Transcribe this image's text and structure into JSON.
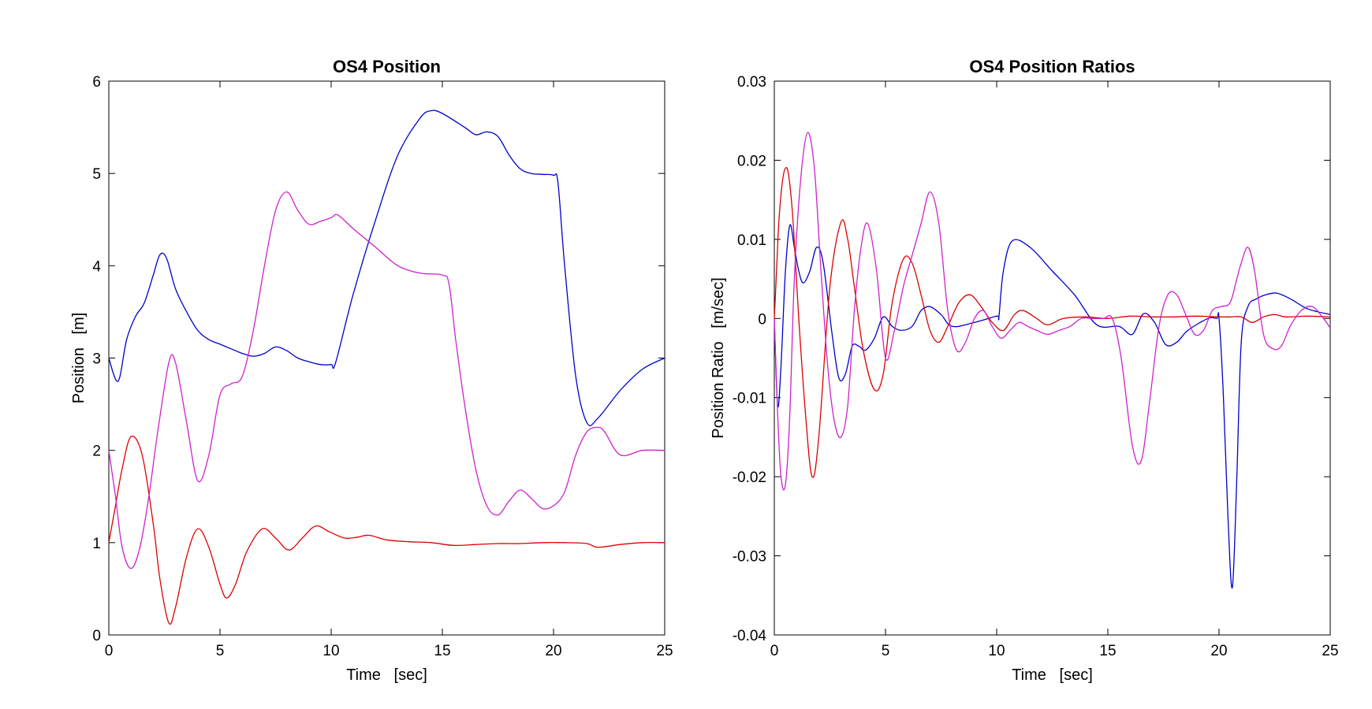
{
  "colors": {
    "blue": "#0000cc",
    "red": "#dd0000",
    "magenta": "#cc22cc"
  },
  "chart_data": [
    {
      "type": "line",
      "title": "OS4 Position",
      "xlabel": "Time   [sec]",
      "ylabel": "Position   [m]",
      "xlim": [
        0,
        25
      ],
      "ylim": [
        0,
        6
      ],
      "xticks": [
        "0",
        "5",
        "10",
        "15",
        "20",
        "25"
      ],
      "yticks": [
        "0",
        "1",
        "2",
        "3",
        "4",
        "5",
        "6"
      ],
      "grid": false,
      "series": [
        {
          "color": "blue",
          "x": [
            0,
            0.3,
            0.5,
            0.8,
            1.2,
            1.6,
            2,
            2.3,
            2.6,
            3,
            3.5,
            4,
            4.5,
            5,
            5.5,
            6,
            6.5,
            7,
            7.5,
            8,
            8.5,
            9,
            9.5,
            10,
            10.2,
            11,
            12,
            13,
            14,
            14.5,
            15,
            16,
            16.5,
            17,
            17.5,
            18,
            18.5,
            19,
            19.5,
            20,
            20.2,
            20.5,
            21,
            21.5,
            22,
            23,
            24,
            25
          ],
          "y": [
            3,
            2.77,
            2.8,
            3.2,
            3.45,
            3.6,
            3.9,
            4.12,
            4.08,
            3.75,
            3.5,
            3.3,
            3.2,
            3.15,
            3.1,
            3.05,
            3.02,
            3.05,
            3.12,
            3.08,
            3,
            2.96,
            2.93,
            2.93,
            2.95,
            3.7,
            4.5,
            5.2,
            5.6,
            5.68,
            5.65,
            5.5,
            5.42,
            5.45,
            5.4,
            5.2,
            5.05,
            5,
            4.99,
            4.98,
            4.9,
            4,
            2.8,
            2.3,
            2.35,
            2.65,
            2.88,
            3
          ]
        },
        {
          "color": "red",
          "x": [
            0,
            0.3,
            0.6,
            1,
            1.5,
            2,
            2.3,
            2.7,
            3,
            3.5,
            4,
            4.5,
            5,
            5.3,
            5.7,
            6.2,
            6.9,
            7.5,
            8.1,
            8.7,
            9.3,
            9.9,
            10.6,
            11.2,
            11.7,
            12.5,
            13.5,
            14.5,
            15.5,
            16.5,
            17.5,
            18.5,
            19.5,
            20.5,
            21.5,
            22,
            23,
            24,
            25
          ],
          "y": [
            1,
            1.4,
            1.8,
            2.15,
            1.95,
            1.2,
            0.6,
            0.13,
            0.3,
            0.85,
            1.15,
            0.95,
            0.55,
            0.4,
            0.55,
            0.9,
            1.15,
            1.05,
            0.92,
            1.05,
            1.18,
            1.12,
            1.05,
            1.06,
            1.08,
            1.03,
            1.01,
            1.0,
            0.97,
            0.98,
            0.99,
            0.99,
            1.0,
            1.0,
            0.99,
            0.95,
            0.98,
            1.0,
            1.0
          ]
        },
        {
          "color": "magenta",
          "x": [
            0,
            0.3,
            0.6,
            1,
            1.4,
            1.8,
            2.2,
            2.7,
            3,
            3.5,
            4,
            4.5,
            5,
            5.5,
            6,
            6.5,
            7,
            7.5,
            8,
            8.5,
            9,
            9.5,
            10,
            10.3,
            11,
            12,
            13,
            14,
            15,
            15.3,
            15.6,
            16,
            16.5,
            17,
            17.5,
            18,
            18.5,
            19,
            19.5,
            20,
            20.5,
            21,
            21.5,
            22,
            22.3,
            23,
            24,
            25
          ],
          "y": [
            2,
            1.5,
            0.95,
            0.72,
            0.95,
            1.5,
            2.2,
            2.95,
            2.95,
            2.3,
            1.67,
            1.95,
            2.6,
            2.72,
            2.8,
            3.3,
            4,
            4.6,
            4.8,
            4.6,
            4.45,
            4.48,
            4.52,
            4.55,
            4.4,
            4.2,
            4.0,
            3.92,
            3.9,
            3.8,
            3.2,
            2.5,
            1.8,
            1.4,
            1.3,
            1.45,
            1.57,
            1.48,
            1.37,
            1.4,
            1.55,
            1.95,
            2.2,
            2.25,
            2.2,
            1.95,
            2.0,
            2.0
          ]
        }
      ]
    },
    {
      "type": "line",
      "title": "OS4 Position Ratios",
      "xlabel": "Time   [sec]",
      "ylabel": "Position Ratio   [m/sec]",
      "xlim": [
        0,
        25
      ],
      "ylim": [
        -0.04,
        0.03
      ],
      "xticks": [
        "0",
        "5",
        "10",
        "15",
        "20",
        "25"
      ],
      "yticks": [
        "-0.04",
        "-0.03",
        "-0.02",
        "-0.01",
        "0",
        "0.01",
        "0.02",
        "0.03"
      ],
      "grid": false,
      "series": [
        {
          "color": "blue",
          "x": [
            0,
            0.15,
            0.3,
            0.5,
            0.7,
            0.9,
            1.1,
            1.3,
            1.6,
            1.9,
            2.2,
            2.6,
            2.9,
            3.2,
            3.5,
            3.8,
            4.1,
            4.5,
            4.9,
            5.3,
            5.7,
            6.2,
            6.6,
            7,
            7.5,
            8,
            9,
            10,
            10.1,
            10.3,
            10.7,
            11.5,
            12.5,
            13.5,
            14.5,
            15.5,
            16.1,
            16.6,
            17.1,
            17.6,
            18.1,
            18.6,
            19.5,
            19.9,
            20,
            20.2,
            20.4,
            20.6,
            20.8,
            21,
            21.3,
            21.7,
            22.1,
            22.6,
            23.2,
            24,
            25
          ],
          "y": [
            0,
            -0.011,
            -0.006,
            0.006,
            0.0118,
            0.009,
            0.006,
            0.0045,
            0.006,
            0.009,
            0.007,
            -0.002,
            -0.0075,
            -0.007,
            -0.0035,
            -0.0035,
            -0.004,
            -0.0025,
            0.0002,
            -0.001,
            -0.0015,
            -0.001,
            0.001,
            0.0015,
            0.0005,
            -0.001,
            -0.0005,
            0.0003,
            0.0002,
            0.006,
            0.0098,
            0.009,
            0.006,
            0.003,
            -0.0008,
            -0.001,
            -0.002,
            0.0006,
            -0.0005,
            -0.0033,
            -0.003,
            -0.0015,
            0,
            0,
            0,
            -0.01,
            -0.025,
            -0.034,
            -0.02,
            -0.003,
            0.0015,
            0.0025,
            0.003,
            0.0032,
            0.0025,
            0.0012,
            0.0005
          ]
        },
        {
          "color": "red",
          "x": [
            0,
            0.1,
            0.2,
            0.35,
            0.5,
            0.65,
            0.85,
            1.1,
            1.4,
            1.7,
            2,
            2.5,
            3,
            3.3,
            3.6,
            4,
            4.5,
            4.9,
            5.3,
            5.8,
            6.2,
            6.6,
            7,
            7.4,
            7.8,
            8.3,
            8.8,
            9.3,
            9.8,
            10.3,
            10.8,
            11.2,
            11.8,
            12.3,
            13,
            14,
            15,
            16,
            17,
            18,
            19,
            20,
            20.5,
            21,
            21.5,
            22,
            22.5,
            23,
            24,
            25
          ],
          "y": [
            0,
            0.006,
            0.012,
            0.017,
            0.019,
            0.018,
            0.012,
            0,
            -0.012,
            -0.02,
            -0.015,
            0.004,
            0.0122,
            0.01,
            0.004,
            -0.004,
            -0.009,
            -0.007,
            0.002,
            0.0075,
            0.007,
            0.003,
            -0.0015,
            -0.003,
            -0.001,
            0.002,
            0.003,
            0.0015,
            -0.0005,
            -0.0015,
            0.0005,
            0.001,
            0,
            -0.0008,
            0,
            0.0002,
            0,
            0.0003,
            0.0002,
            0.0002,
            0.0003,
            0.0002,
            0.0002,
            0.0002,
            -0.0005,
            0.0002,
            0.0005,
            0.0002,
            0.0003,
            0.0002
          ]
        },
        {
          "color": "magenta",
          "x": [
            0,
            0.15,
            0.3,
            0.5,
            0.7,
            0.9,
            1.2,
            1.5,
            1.8,
            2.1,
            2.4,
            2.7,
            3,
            3.3,
            3.6,
            3.9,
            4.2,
            4.6,
            5,
            5.4,
            5.8,
            6.2,
            6.6,
            7,
            7.4,
            7.8,
            8.2,
            8.6,
            9,
            9.4,
            9.8,
            10.2,
            10.6,
            11,
            11.4,
            11.8,
            12.3,
            12.8,
            13.3,
            13.8,
            14.3,
            14.8,
            15.2,
            15.6,
            16.1,
            16.5,
            16.9,
            17.3,
            17.7,
            18.1,
            18.5,
            18.9,
            19.3,
            19.7,
            20.1,
            20.5,
            20.8,
            21,
            21.3,
            21.6,
            22,
            22.4,
            22.8,
            23.2,
            23.7,
            24.2,
            24.7,
            25
          ],
          "y": [
            0,
            -0.012,
            -0.02,
            -0.021,
            -0.012,
            0.005,
            0.018,
            0.0235,
            0.019,
            0.006,
            -0.006,
            -0.013,
            -0.015,
            -0.011,
            0.001,
            0.009,
            0.012,
            0.006,
            -0.005,
            -0.0015,
            0.004,
            0.008,
            0.012,
            0.016,
            0.012,
            0.001,
            -0.004,
            -0.003,
            0,
            0.001,
            -0.001,
            -0.0025,
            -0.0015,
            -0.0005,
            -0.001,
            -0.0015,
            -0.002,
            -0.0015,
            -0.001,
            0,
            0,
            0,
            0,
            -0.005,
            -0.016,
            -0.018,
            -0.01,
            -0.001,
            0.003,
            0.003,
            0.0005,
            -0.002,
            -0.0015,
            0.001,
            0.0015,
            0.002,
            0.005,
            0.007,
            0.009,
            0.006,
            -0.002,
            -0.0038,
            -0.0035,
            -0.001,
            0.001,
            0.0015,
            0,
            -0.0012
          ]
        }
      ]
    }
  ]
}
